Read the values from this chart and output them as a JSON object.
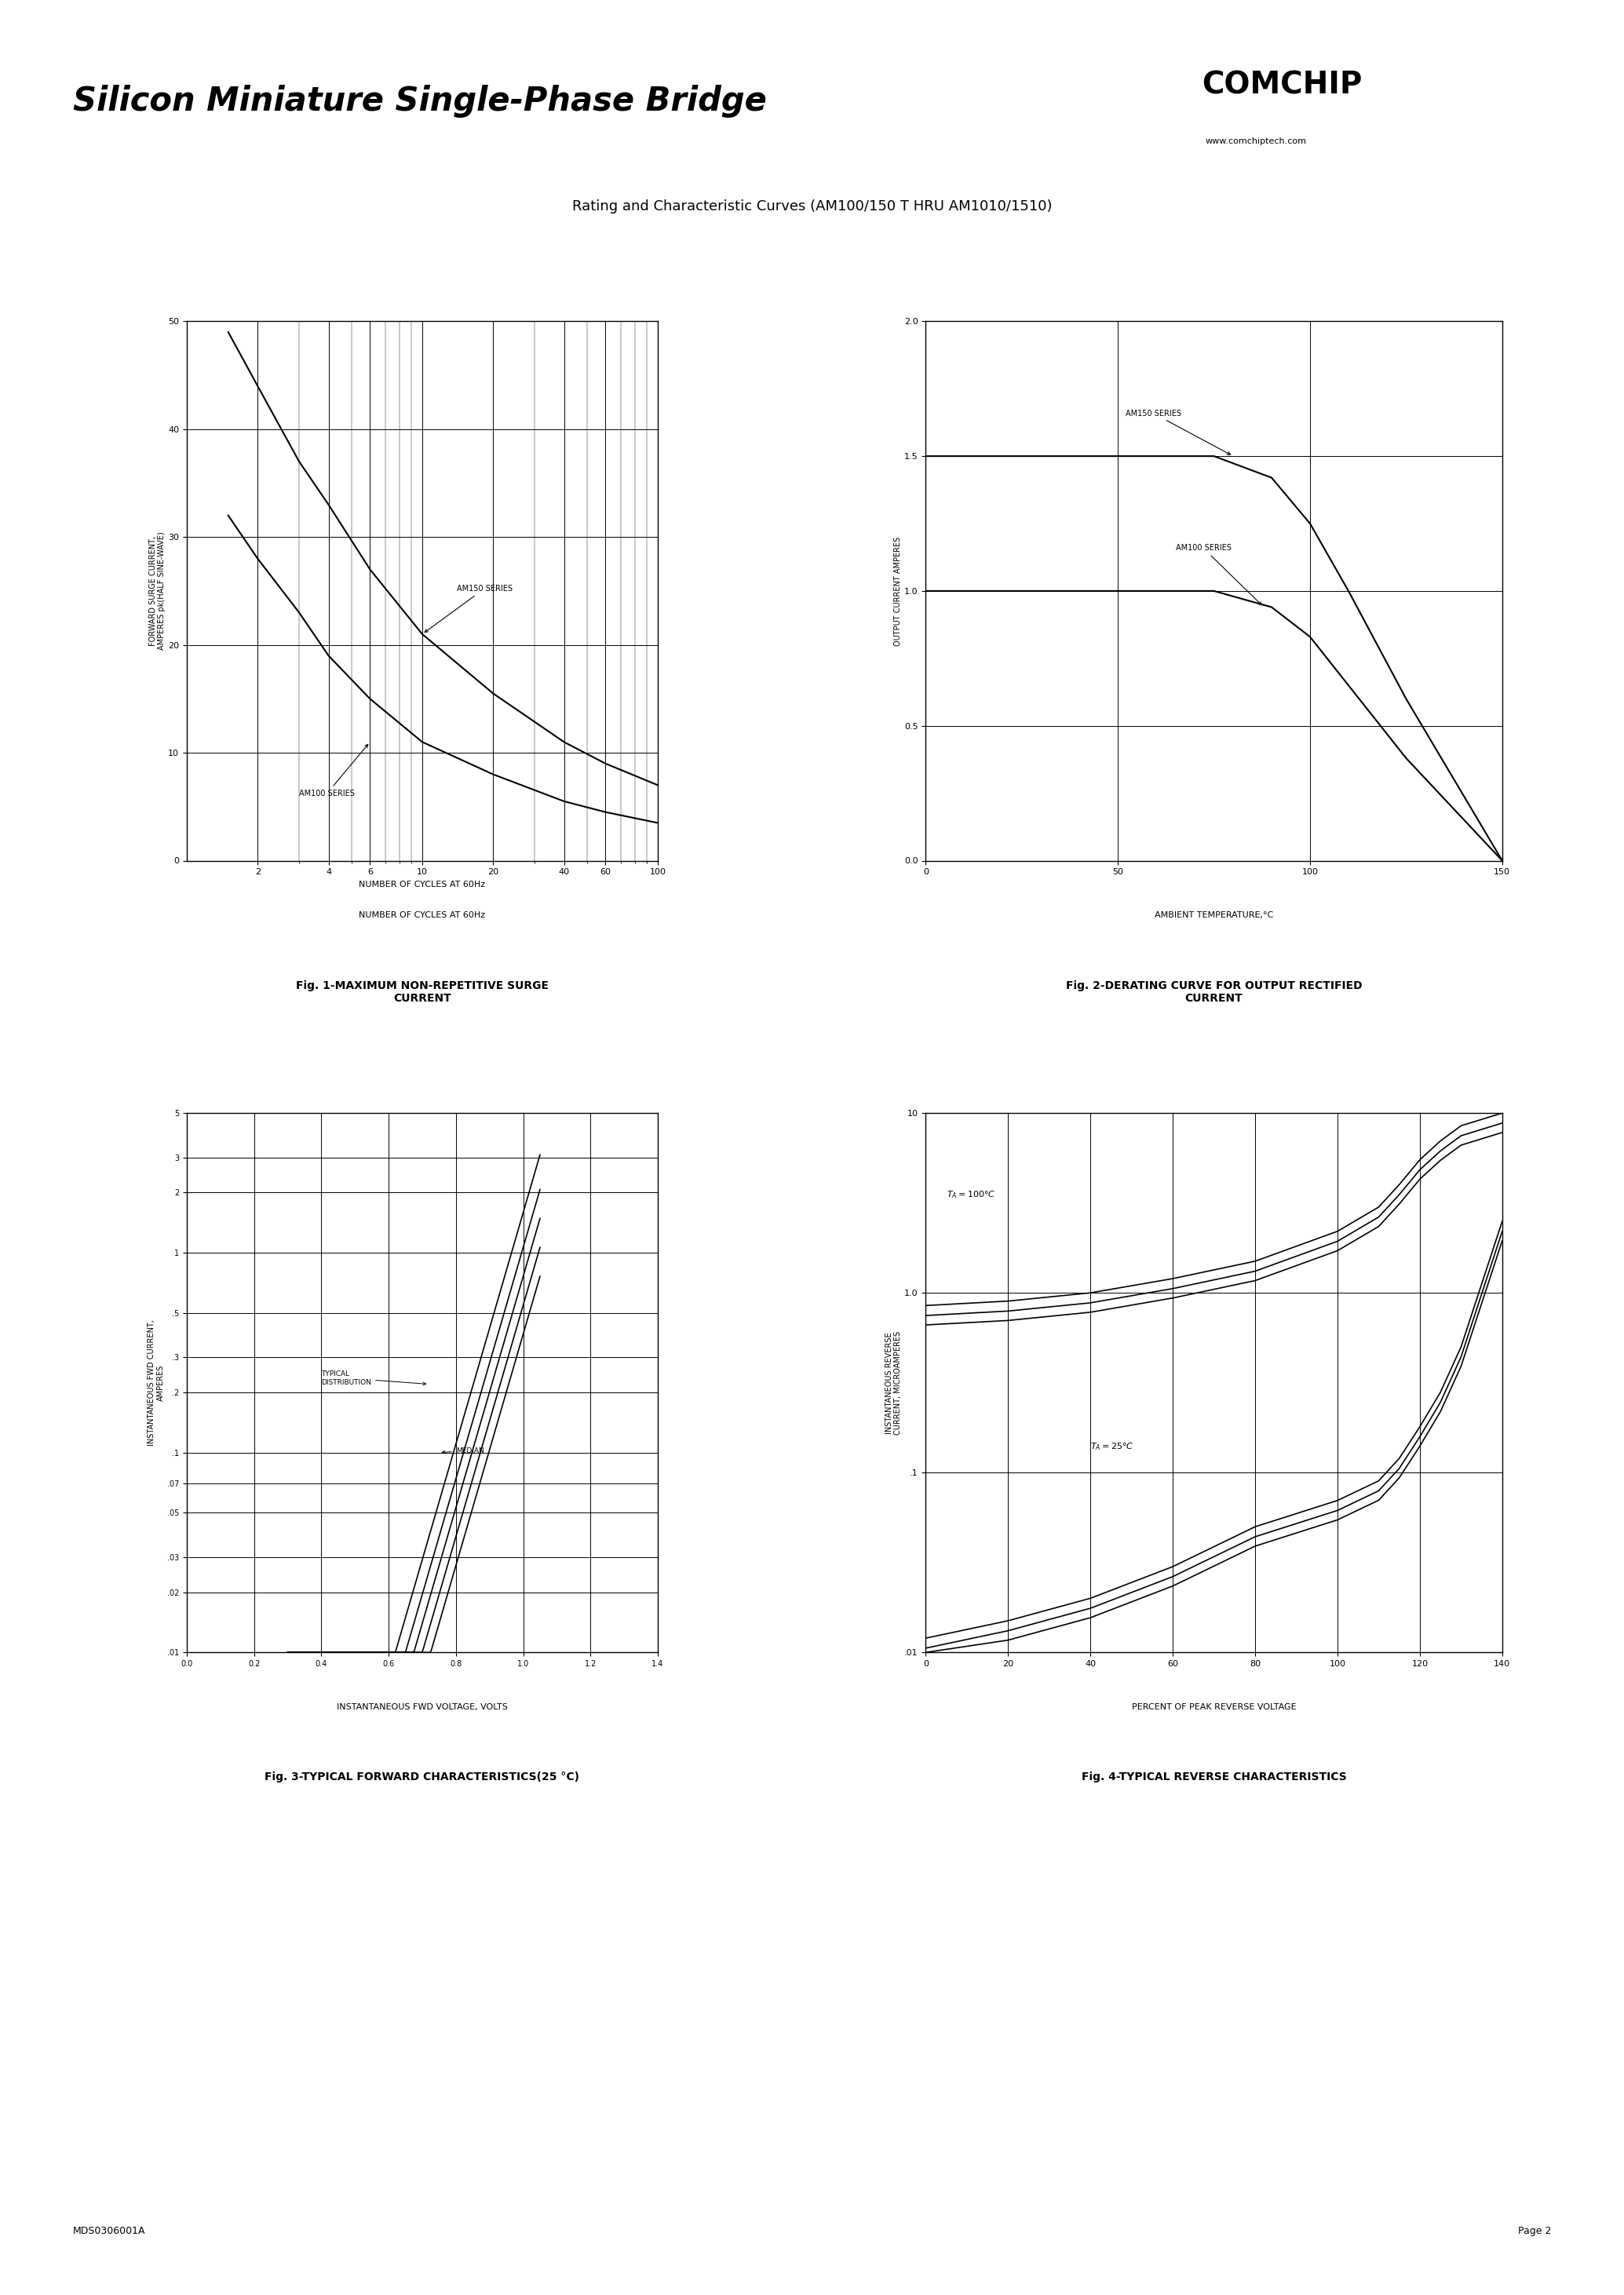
{
  "title": "Silicon Miniature Single-Phase Bridge",
  "subtitle": "Rating and Characteristic Curves (AM100/150 T HRU AM1010/1510)",
  "comchip_text": "COMCHIP",
  "website": "www.comchiptech.com",
  "footer_left": "MDS0306001A",
  "footer_right": "Page 2",
  "fig1_title": "Fig. 1-MAXIMUM NON-REPETITIVE SURGE\nCURRENT",
  "fig2_title": "Fig. 2-DERATING CURVE FOR OUTPUT RECTIFIED\nCURRENT",
  "fig3_title": "Fig. 3-TYPICAL FORWARD CHARACTERISTICS(25 °C)",
  "fig4_title": "Fig. 4-TYPICAL REVERSE CHARACTERISTICS",
  "fig1_xlabel": "NUMBER OF CYCLES AT 60Hz",
  "fig1_ylabel": "FORWARD SURGE CURRENT,\nAMPERES pk(HALF SINE-WAVE)",
  "fig1_xlim": [
    1,
    100
  ],
  "fig1_ylim": [
    0,
    50
  ],
  "fig1_yticks": [
    0,
    10,
    20,
    30,
    40,
    50
  ],
  "fig1_xticks": [
    2,
    4,
    6,
    10,
    20,
    40,
    60,
    100
  ],
  "fig2_xlabel": "AMBIENT TEMPERATURE,°C",
  "fig2_ylabel": "OUTPUT CURRENT AMPERES",
  "fig2_xlim": [
    0,
    150
  ],
  "fig2_ylim": [
    0,
    2.0
  ],
  "fig2_yticks": [
    0,
    0.5,
    1.0,
    1.5,
    2.0
  ],
  "fig2_xticks": [
    0,
    50,
    100,
    150
  ],
  "fig3_xlabel": "INSTANTANEOUS FWD VOLTAGE, VOLTS",
  "fig3_ylabel": "INSTANTANEOUS FWD CURRENT,\nAMPERES",
  "fig3_xlim": [
    0,
    1.4
  ],
  "fig3_ylim": [
    0.01,
    5
  ],
  "fig3_yticks": [
    0.01,
    0.02,
    0.03,
    0.05,
    0.07,
    0.1,
    0.2,
    0.3,
    0.5,
    1.0,
    2.0,
    3.0,
    5.0
  ],
  "fig3_ytick_labels": [
    ".01",
    ".02",
    ".03",
    ".05",
    ".07",
    ".1",
    ".2",
    ".3",
    ".5",
    "1",
    "2",
    "3",
    "5"
  ],
  "fig3_xticks": [
    0,
    0.2,
    0.4,
    0.6,
    0.8,
    1.0,
    1.2,
    1.4
  ],
  "fig4_xlabel": "PERCENT OF PEAK REVERSE VOLTAGE",
  "fig4_ylabel": "INSTANTANEOUS REVERSE\nCURRENT, MICROAMPERES",
  "fig4_xlim": [
    0,
    140
  ],
  "fig4_ylim": [
    0.01,
    10
  ],
  "fig4_yticks": [
    0.01,
    0.1,
    1.0,
    10.0
  ],
  "fig4_ytick_labels": [
    ".01",
    ".1",
    "1.0",
    "10"
  ],
  "fig4_xticks": [
    0,
    20,
    40,
    60,
    80,
    100,
    120,
    140
  ],
  "background_color": "#ffffff",
  "grid_color": "#000000",
  "line_color": "#000000"
}
